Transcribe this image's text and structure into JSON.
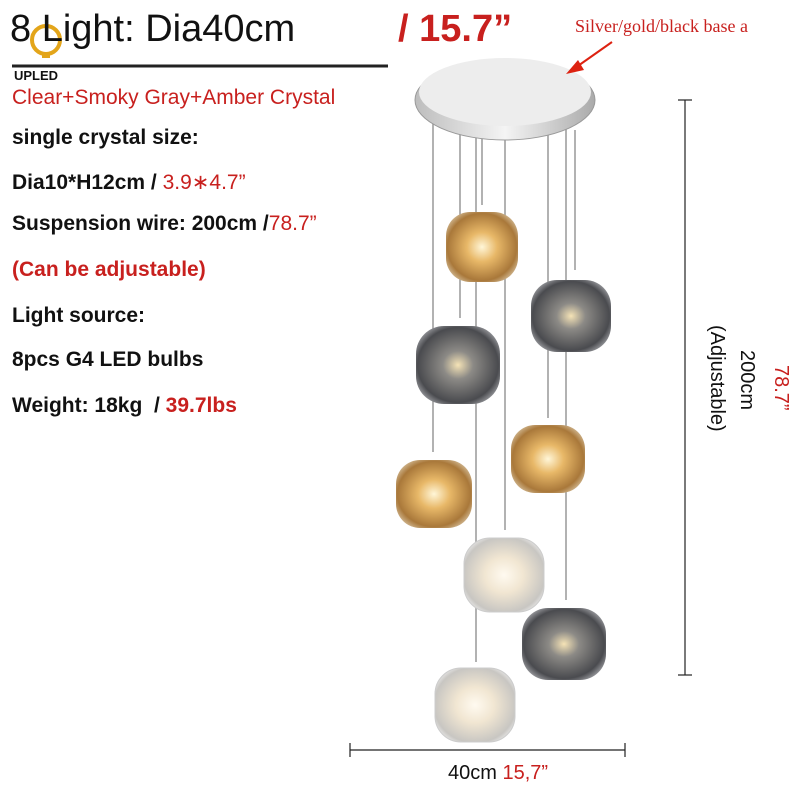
{
  "header": {
    "logo": "UPLED",
    "title": "8 Light: Dia40cm",
    "title_imperial": "/ 15.7”",
    "base_note": "Silver/gold/black base a"
  },
  "specs": {
    "crystal_types": "Clear+Smoky Gray+Amber Crystal",
    "crystal_size_label": "single crystal size:",
    "crystal_size_metric": "Dia10*H12cm /",
    "crystal_size_imperial": "3.9∗4.7”",
    "wire_metric": "Suspension wire: 200cm /",
    "wire_imperial": "78.7”",
    "adjustable_note": "(Can be adjustable)",
    "light_source_label": "Light source:",
    "light_source": "8pcs G4 LED bulbs",
    "weight_metric": "Weight: 18kg  /",
    "weight_imperial": "39.7lbs"
  },
  "dimensions": {
    "height_metric": "200cm",
    "height_note": "(Adjustable)",
    "height_imperial": "78.7”",
    "width_metric": "40cm",
    "width_imperial": "15,7”"
  }
}
